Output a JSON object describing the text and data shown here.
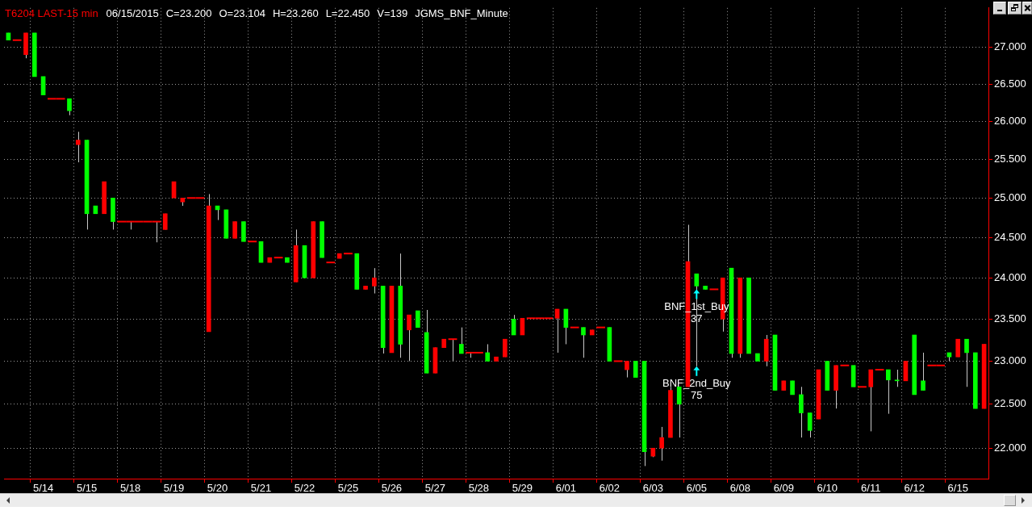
{
  "chart_data": {
    "type": "candlestick",
    "title": "T6204 LAST-15 min",
    "annotations": [
      "06/15/2015",
      "C=23.200",
      "O=23.104",
      "H=23.260",
      "L=22.450",
      "V=139",
      "JGMS_BNF_Minute",
      {
        "text": "BNF_1st_Buy\n37",
        "x": "6/05",
        "y": 23.86
      },
      {
        "text": "BNF_2nd_Buy\n75",
        "x": "6/05",
        "y": 22.94
      }
    ],
    "categories": [
      null,
      null,
      null,
      null,
      "5/14",
      null,
      null,
      null,
      null,
      "5/15",
      null,
      null,
      null,
      null,
      "5/18",
      null,
      null,
      null,
      null,
      "5/19",
      null,
      null,
      null,
      null,
      "5/20",
      null,
      null,
      null,
      null,
      "5/21",
      null,
      null,
      null,
      null,
      "5/22",
      null,
      null,
      null,
      null,
      "5/25",
      null,
      null,
      null,
      null,
      "5/26",
      null,
      null,
      null,
      null,
      "5/27",
      null,
      null,
      null,
      null,
      "5/28",
      null,
      null,
      null,
      null,
      "5/29",
      null,
      null,
      null,
      null,
      "6/01",
      null,
      null,
      null,
      null,
      "6/02",
      null,
      null,
      null,
      null,
      "6/03",
      null,
      null,
      null,
      null,
      "6/05",
      null,
      null,
      null,
      null,
      "6/08",
      null,
      null,
      null,
      null,
      "6/09",
      null,
      null,
      null,
      null,
      "6/10",
      null,
      null,
      null,
      null,
      "6/11",
      null,
      null,
      null,
      null,
      "6/12",
      null,
      null,
      null,
      null,
      "6/15",
      null,
      null,
      null
    ],
    "ohlc": [
      [
        27.2,
        27.2,
        27.1,
        27.1
      ],
      [
        27.1,
        27.1,
        27.1,
        27.1
      ],
      [
        26.9,
        27.2,
        26.85,
        27.2
      ],
      [
        27.2,
        27.2,
        26.6,
        26.6
      ],
      [
        26.6,
        26.6,
        26.35,
        26.35
      ],
      [
        26.3,
        26.3,
        26.3,
        26.3
      ],
      [
        26.3,
        26.3,
        26.3,
        26.3
      ],
      [
        26.3,
        26.3,
        26.08,
        26.14
      ],
      [
        25.69,
        25.86,
        25.46,
        25.75
      ],
      [
        25.75,
        25.75,
        24.6,
        24.8
      ],
      [
        24.9,
        24.9,
        24.8,
        24.8
      ],
      [
        24.8,
        25.21,
        24.8,
        25.21
      ],
      [
        25.0,
        25.0,
        24.6,
        24.7
      ],
      [
        24.7,
        24.7,
        24.7,
        24.7
      ],
      [
        24.7,
        24.7,
        24.6,
        24.7
      ],
      [
        24.7,
        24.7,
        24.7,
        24.7
      ],
      [
        24.7,
        24.7,
        24.7,
        24.7
      ],
      [
        24.7,
        24.7,
        24.44,
        24.7
      ],
      [
        24.6,
        24.8,
        24.6,
        24.8
      ],
      [
        25.0,
        25.21,
        25.0,
        25.21
      ],
      [
        24.95,
        25.0,
        24.9,
        25.0
      ],
      [
        25.0,
        25.0,
        25.0,
        25.0
      ],
      [
        25.0,
        25.0,
        25.0,
        25.0
      ],
      [
        23.35,
        25.05,
        23.35,
        24.9
      ],
      [
        24.9,
        24.9,
        24.72,
        24.85
      ],
      [
        24.85,
        24.85,
        24.49,
        24.49
      ],
      [
        24.49,
        24.7,
        24.49,
        24.7
      ],
      [
        24.7,
        24.7,
        24.45,
        24.45
      ],
      [
        24.45,
        24.45,
        24.45,
        24.45
      ],
      [
        24.45,
        24.45,
        24.19,
        24.19
      ],
      [
        24.19,
        24.25,
        24.19,
        24.25
      ],
      [
        24.25,
        24.25,
        24.25,
        24.25
      ],
      [
        24.25,
        24.25,
        24.19,
        24.19
      ],
      [
        23.95,
        24.6,
        23.95,
        24.4
      ],
      [
        24.4,
        24.4,
        24.0,
        24.0
      ],
      [
        24.0,
        24.7,
        24.0,
        24.7
      ],
      [
        24.7,
        24.7,
        24.25,
        24.25
      ],
      [
        24.19,
        24.19,
        24.19,
        24.19
      ],
      [
        24.24,
        24.3,
        24.24,
        24.3
      ],
      [
        24.3,
        24.3,
        24.3,
        24.3
      ],
      [
        24.3,
        24.3,
        23.86,
        23.86
      ],
      [
        23.86,
        23.9,
        23.86,
        23.9
      ],
      [
        23.9,
        24.12,
        23.81,
        24.0
      ],
      [
        23.9,
        23.9,
        23.09,
        23.16
      ],
      [
        23.1,
        23.9,
        23.1,
        23.9
      ],
      [
        23.9,
        24.3,
        23.04,
        23.2
      ],
      [
        23.37,
        23.55,
        23.0,
        23.55
      ],
      [
        23.6,
        23.6,
        23.4,
        23.4
      ],
      [
        23.34,
        23.61,
        22.86,
        22.86
      ],
      [
        22.86,
        23.16,
        22.86,
        23.16
      ],
      [
        23.16,
        23.26,
        23.16,
        23.26
      ],
      [
        23.26,
        23.26,
        23.0,
        23.26
      ],
      [
        23.2,
        23.4,
        23.09,
        23.09
      ],
      [
        23.1,
        23.1,
        23.04,
        23.1
      ],
      [
        23.1,
        23.1,
        23.1,
        23.1
      ],
      [
        23.1,
        23.2,
        23.0,
        23.0
      ],
      [
        23.0,
        23.05,
        23.0,
        23.05
      ],
      [
        23.05,
        23.26,
        23.05,
        23.26
      ],
      [
        23.5,
        23.55,
        23.31,
        23.31
      ],
      [
        23.31,
        23.51,
        23.31,
        23.51
      ],
      [
        23.51,
        23.51,
        23.51,
        23.51
      ],
      [
        23.51,
        23.51,
        23.51,
        23.51
      ],
      [
        23.51,
        23.51,
        23.51,
        23.51
      ],
      [
        23.51,
        23.62,
        23.1,
        23.62
      ],
      [
        23.62,
        23.62,
        23.2,
        23.4
      ],
      [
        23.4,
        23.4,
        23.4,
        23.4
      ],
      [
        23.4,
        23.4,
        23.04,
        23.31
      ],
      [
        23.31,
        23.37,
        23.31,
        23.37
      ],
      [
        23.4,
        23.4,
        23.4,
        23.4
      ],
      [
        23.4,
        23.4,
        23.0,
        23.0
      ],
      [
        23.0,
        23.0,
        23.0,
        23.0
      ],
      [
        22.9,
        23.0,
        22.81,
        23.0
      ],
      [
        23.0,
        23.0,
        22.81,
        22.81
      ],
      [
        23.0,
        23.0,
        21.8,
        21.96
      ],
      [
        21.91,
        22.0,
        21.9,
        22.0
      ],
      [
        22.0,
        22.24,
        21.86,
        22.12
      ],
      [
        22.12,
        22.7,
        22.12,
        22.66
      ],
      [
        22.7,
        22.7,
        22.12,
        22.5
      ],
      [
        22.7,
        24.66,
        22.7,
        24.2
      ],
      [
        24.05,
        24.05,
        22.94,
        23.9
      ],
      [
        23.9,
        23.9,
        23.86,
        23.86
      ],
      [
        23.86,
        23.86,
        23.86,
        23.86
      ],
      [
        23.5,
        24.0,
        23.35,
        24.0
      ],
      [
        24.12,
        24.12,
        23.04,
        23.09
      ],
      [
        23.09,
        24.0,
        23.04,
        24.0
      ],
      [
        24.0,
        24.0,
        23.09,
        23.09
      ],
      [
        23.09,
        23.09,
        23.0,
        23.0
      ],
      [
        23.0,
        23.31,
        22.94,
        23.26
      ],
      [
        23.31,
        23.31,
        22.66,
        22.66
      ],
      [
        22.66,
        22.77,
        22.66,
        22.77
      ],
      [
        22.77,
        22.77,
        22.61,
        22.61
      ],
      [
        22.61,
        22.7,
        22.12,
        22.4
      ],
      [
        22.4,
        22.4,
        22.12,
        22.2
      ],
      [
        22.33,
        22.9,
        22.33,
        22.9
      ],
      [
        23.0,
        23.0,
        22.66,
        22.66
      ],
      [
        22.66,
        22.95,
        22.45,
        22.95
      ],
      [
        22.95,
        22.95,
        22.95,
        22.95
      ],
      [
        22.95,
        22.95,
        22.7,
        22.7
      ],
      [
        22.7,
        22.7,
        22.7,
        22.7
      ],
      [
        22.7,
        22.9,
        22.19,
        22.9
      ],
      [
        22.9,
        22.9,
        22.9,
        22.9
      ],
      [
        22.9,
        22.9,
        22.39,
        22.78
      ],
      [
        22.78,
        22.9,
        22.7,
        22.77
      ],
      [
        22.77,
        23.0,
        22.77,
        23.0
      ],
      [
        23.31,
        23.31,
        22.61,
        22.61
      ],
      [
        22.77,
        23.1,
        22.66,
        22.66
      ],
      [
        22.95,
        22.95,
        22.95,
        22.95
      ],
      [
        22.95,
        22.95,
        22.95,
        22.95
      ],
      [
        23.1,
        23.1,
        23.0,
        23.05
      ],
      [
        23.05,
        23.26,
        23.05,
        23.26
      ],
      [
        23.26,
        23.26,
        22.7,
        23.1
      ],
      [
        23.1,
        23.1,
        22.45,
        22.45
      ],
      [
        22.45,
        23.2,
        22.45,
        23.2
      ]
    ],
    "colors": [
      "#00ff00",
      "#ff0000",
      "#ff0000",
      "#00ff00",
      "#00ff00",
      "#ff0000",
      "#ff0000",
      "#00ff00",
      "#ff0000",
      "#00ff00",
      "#00ff00",
      "#ff0000",
      "#00ff00",
      "#ff0000",
      "#ff0000",
      "#ff0000",
      "#ff0000",
      "#ff0000",
      "#ff0000",
      "#ff0000",
      "#ff0000",
      "#ff0000",
      "#ff0000",
      "#ff0000",
      "#00ff00",
      "#00ff00",
      "#ff0000",
      "#00ff00",
      "#ff0000",
      "#00ff00",
      "#ff0000",
      "#ff0000",
      "#00ff00",
      "#ff0000",
      "#00ff00",
      "#ff0000",
      "#00ff00",
      "#ff0000",
      "#ff0000",
      "#ff0000",
      "#00ff00",
      "#ff0000",
      "#ff0000",
      "#00ff00",
      "#ff0000",
      "#00ff00",
      "#ff0000",
      "#00ff00",
      "#00ff00",
      "#ff0000",
      "#ff0000",
      "#ff0000",
      "#00ff00",
      "#ff0000",
      "#ff0000",
      "#00ff00",
      "#ff0000",
      "#ff0000",
      "#00ff00",
      "#ff0000",
      "#ff0000",
      "#ff0000",
      "#ff0000",
      "#ff0000",
      "#00ff00",
      "#ff0000",
      "#00ff00",
      "#ff0000",
      "#ff0000",
      "#00ff00",
      "#ff0000",
      "#ff0000",
      "#00ff00",
      "#00ff00",
      "#ff0000",
      "#ff0000",
      "#ff0000",
      "#00ff00",
      "#ff0000",
      "#00ff00",
      "#00ff00",
      "#ff0000",
      "#ff0000",
      "#00ff00",
      "#ff0000",
      "#00ff00",
      "#00ff00",
      "#ff0000",
      "#00ff00",
      "#ff0000",
      "#00ff00",
      "#00ff00",
      "#00ff00",
      "#ff0000",
      "#00ff00",
      "#ff0000",
      "#ff0000",
      "#00ff00",
      "#ff0000",
      "#ff0000",
      "#ff0000",
      "#00ff00",
      "#00ff00",
      "#ff0000",
      "#00ff00",
      "#00ff00",
      "#ff0000",
      "#ff0000",
      "#00ff00",
      "#ff0000",
      "#00ff00",
      "#00ff00",
      "#ff0000"
    ],
    "log": true,
    "ylim": [
      21.66,
      27.55
    ],
    "yticks": [
      {
        "value": 22,
        "label": "22.000"
      },
      {
        "value": 22.5,
        "label": "22.500"
      },
      {
        "value": 23,
        "label": "23.000"
      },
      {
        "value": 23.5,
        "label": "23.500"
      },
      {
        "value": 24,
        "label": "24.000"
      },
      {
        "value": 24.5,
        "label": "24.500"
      },
      {
        "value": 25,
        "label": "25.000"
      },
      {
        "value": 25.5,
        "label": "25.500"
      },
      {
        "value": 26,
        "label": "26.000"
      },
      {
        "value": 26.5,
        "label": "26.500"
      },
      {
        "value": 27,
        "label": "27.000"
      }
    ],
    "grid": true
  }
}
